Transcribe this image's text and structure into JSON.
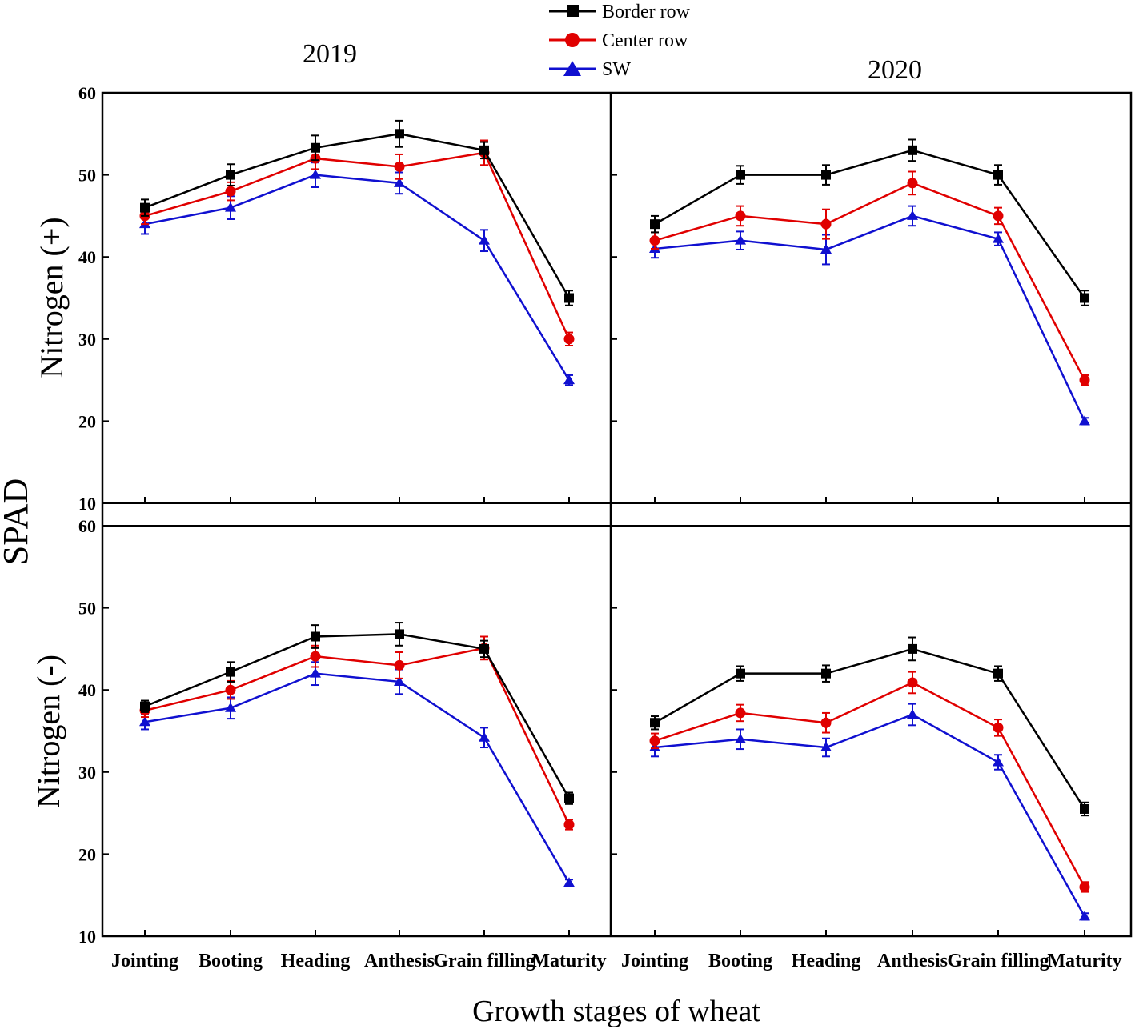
{
  "chart_data": {
    "type": "line",
    "ylabel_shared": "SPAD",
    "xlabel": "Growth stages of wheat",
    "categories": [
      "Jointing",
      "Booting",
      "Heading",
      "Anthesis",
      "Grain filling",
      "Maturity"
    ],
    "ylim": [
      10,
      60
    ],
    "yticks": [
      10,
      20,
      30,
      40,
      50,
      60
    ],
    "legend": {
      "placement": "top-center",
      "entries": [
        {
          "name": "Border row",
          "color": "#000000",
          "marker": "square"
        },
        {
          "name": "Center row",
          "color": "#e00000",
          "marker": "circle"
        },
        {
          "name": "SW",
          "color": "#1010d0",
          "marker": "triangle"
        }
      ]
    },
    "panels": [
      {
        "id": "p2019n",
        "year": "2019",
        "row_label": "Nitrogen (+)",
        "series": [
          {
            "name": "Border row",
            "values": [
              46,
              50,
              53.3,
              55,
              53,
              35
            ],
            "errors": [
              1.0,
              1.3,
              1.5,
              1.6,
              1.0,
              0.9
            ]
          },
          {
            "name": "Center row",
            "values": [
              45,
              48,
              52,
              51,
              52.7,
              30
            ],
            "errors": [
              1.0,
              1.1,
              1.3,
              1.5,
              1.5,
              0.8
            ]
          },
          {
            "name": "SW",
            "values": [
              44,
              46,
              50,
              49,
              42,
              25
            ],
            "errors": [
              1.2,
              1.4,
              1.5,
              1.3,
              1.3,
              0.6
            ]
          }
        ]
      },
      {
        "id": "p2020n",
        "year": "2020",
        "row_label": "Nitrogen (+)",
        "series": [
          {
            "name": "Border row",
            "values": [
              44,
              50,
              50,
              53,
              50,
              35
            ],
            "errors": [
              1.0,
              1.1,
              1.2,
              1.3,
              1.2,
              0.9
            ]
          },
          {
            "name": "Center row",
            "values": [
              42,
              45,
              44,
              49,
              45,
              25
            ],
            "errors": [
              1.0,
              1.2,
              1.8,
              1.4,
              1.0,
              0.6
            ]
          },
          {
            "name": "SW",
            "values": [
              41,
              42,
              40.9,
              45,
              42.2,
              20
            ],
            "errors": [
              1.1,
              1.1,
              1.8,
              1.2,
              0.8,
              0.4
            ]
          }
        ]
      },
      {
        "id": "p2019m",
        "year": "",
        "row_label": "Nitrogen (-)",
        "series": [
          {
            "name": "Border row",
            "values": [
              38,
              42.2,
              46.5,
              46.8,
              45,
              26.8
            ],
            "errors": [
              0.7,
              1.2,
              1.4,
              1.4,
              1.0,
              0.7
            ]
          },
          {
            "name": "Center row",
            "values": [
              37.5,
              40,
              44.1,
              43,
              45.1,
              23.6
            ],
            "errors": [
              0.8,
              1.1,
              1.3,
              1.6,
              1.4,
              0.6
            ]
          },
          {
            "name": "SW",
            "values": [
              36.1,
              37.8,
              42,
              41,
              34.2,
              16.5
            ],
            "errors": [
              0.9,
              1.3,
              1.4,
              1.5,
              1.2,
              0.4
            ]
          }
        ]
      },
      {
        "id": "p2020m",
        "year": "",
        "row_label": "Nitrogen (-)",
        "series": [
          {
            "name": "Border row",
            "values": [
              36,
              42,
              42,
              45,
              42,
              25.5
            ],
            "errors": [
              0.8,
              0.9,
              1.0,
              1.4,
              0.9,
              0.8
            ]
          },
          {
            "name": "Center row",
            "values": [
              33.8,
              37.2,
              36,
              40.9,
              35.4,
              16
            ],
            "errors": [
              0.9,
              1.0,
              1.2,
              1.3,
              1.0,
              0.6
            ]
          },
          {
            "name": "SW",
            "values": [
              33,
              34,
              33,
              37,
              31.2,
              12.4
            ],
            "errors": [
              1.1,
              1.2,
              1.1,
              1.3,
              0.9,
              0.4
            ]
          }
        ]
      }
    ]
  }
}
